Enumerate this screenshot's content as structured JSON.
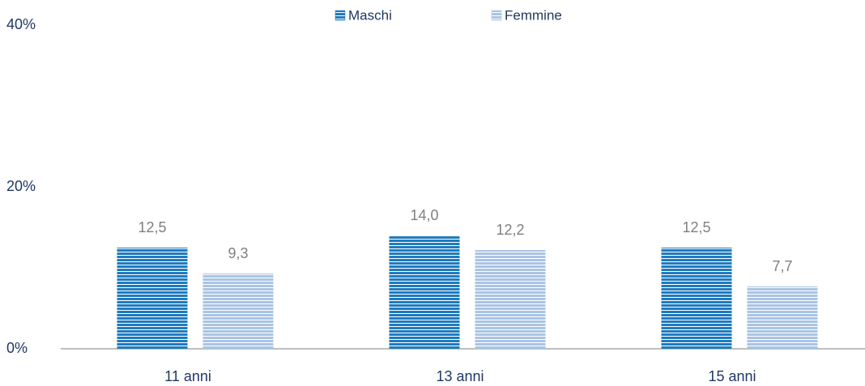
{
  "chart_data": {
    "type": "bar",
    "categories": [
      "11 anni",
      "13 anni",
      "15 anni"
    ],
    "series": [
      {
        "name": "Maschi",
        "color": "#1f7bbf",
        "values": [
          12.5,
          14.0,
          12.5
        ],
        "value_labels": [
          "12,5",
          "14,0",
          "12,5"
        ]
      },
      {
        "name": "Femmine",
        "color": "#a9c4e4",
        "values": [
          9.3,
          12.2,
          7.7
        ],
        "value_labels": [
          "9,3",
          "12,2",
          "7,7"
        ]
      }
    ],
    "ylim": [
      0,
      40
    ],
    "yticks": [
      {
        "value": 0,
        "label": "0%"
      },
      {
        "value": 20,
        "label": "20%"
      },
      {
        "value": 40,
        "label": "40%"
      }
    ],
    "grid": false,
    "legend": "top"
  }
}
